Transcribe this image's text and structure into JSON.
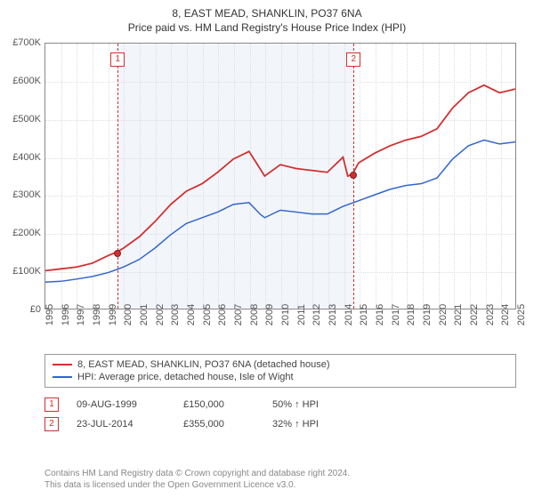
{
  "chart": {
    "type": "line",
    "title_main": "8, EAST MEAD, SHANKLIN, PO37 6NA",
    "title_sub": "Price paid vs. HM Land Registry's House Price Index (HPI)",
    "title_fontsize": 12,
    "label_fontsize": 11,
    "tick_fontsize": 11,
    "background_color": "#ffffff",
    "plot_border_color": "#888888",
    "grid_color": "#dddddd",
    "shade_color": "#f2f6fb",
    "x": {
      "min": 1995,
      "max": 2025,
      "ticks": [
        1995,
        1996,
        1997,
        1998,
        1999,
        2000,
        2001,
        2002,
        2003,
        2004,
        2005,
        2006,
        2007,
        2008,
        2009,
        2010,
        2011,
        2012,
        2013,
        2014,
        2015,
        2016,
        2017,
        2018,
        2019,
        2020,
        2021,
        2022,
        2023,
        2024,
        2025
      ],
      "tick_labels": [
        "1995",
        "1996",
        "1997",
        "1998",
        "1999",
        "2000",
        "2001",
        "2002",
        "2003",
        "2004",
        "2005",
        "2006",
        "2007",
        "2008",
        "2009",
        "2010",
        "2011",
        "2012",
        "2013",
        "2014",
        "2015",
        "2016",
        "2017",
        "2018",
        "2019",
        "2020",
        "2021",
        "2022",
        "2023",
        "2024",
        "2025"
      ]
    },
    "y": {
      "min": 0,
      "max": 700000,
      "ticks": [
        0,
        100000,
        200000,
        300000,
        400000,
        500000,
        600000,
        700000
      ],
      "tick_labels": [
        "£0",
        "£100K",
        "£200K",
        "£300K",
        "£400K",
        "£500K",
        "£600K",
        "£700K"
      ]
    },
    "series": [
      {
        "name": "price_paid",
        "label": "8, EAST MEAD, SHANKLIN, PO37 6NA (detached house)",
        "color": "#d32f2f",
        "line_width": 1.8,
        "points": [
          [
            1995,
            100000
          ],
          [
            1996,
            105000
          ],
          [
            1997,
            110000
          ],
          [
            1998,
            120000
          ],
          [
            1999,
            140000
          ],
          [
            1999.6,
            150000
          ],
          [
            2000,
            160000
          ],
          [
            2001,
            190000
          ],
          [
            2002,
            230000
          ],
          [
            2003,
            275000
          ],
          [
            2004,
            310000
          ],
          [
            2005,
            330000
          ],
          [
            2006,
            360000
          ],
          [
            2007,
            395000
          ],
          [
            2008,
            415000
          ],
          [
            2008.7,
            370000
          ],
          [
            2009,
            350000
          ],
          [
            2010,
            380000
          ],
          [
            2011,
            370000
          ],
          [
            2012,
            365000
          ],
          [
            2013,
            360000
          ],
          [
            2014,
            400000
          ],
          [
            2014.3,
            350000
          ],
          [
            2014.6,
            355000
          ],
          [
            2015,
            385000
          ],
          [
            2016,
            410000
          ],
          [
            2017,
            430000
          ],
          [
            2018,
            445000
          ],
          [
            2019,
            455000
          ],
          [
            2020,
            475000
          ],
          [
            2021,
            530000
          ],
          [
            2022,
            570000
          ],
          [
            2023,
            590000
          ],
          [
            2024,
            570000
          ],
          [
            2025,
            580000
          ]
        ]
      },
      {
        "name": "hpi",
        "label": "HPI: Average price, detached house, Isle of Wight",
        "color": "#3366cc",
        "line_width": 1.5,
        "points": [
          [
            1995,
            70000
          ],
          [
            1996,
            72000
          ],
          [
            1997,
            78000
          ],
          [
            1998,
            85000
          ],
          [
            1999,
            95000
          ],
          [
            2000,
            110000
          ],
          [
            2001,
            130000
          ],
          [
            2002,
            160000
          ],
          [
            2003,
            195000
          ],
          [
            2004,
            225000
          ],
          [
            2005,
            240000
          ],
          [
            2006,
            255000
          ],
          [
            2007,
            275000
          ],
          [
            2008,
            280000
          ],
          [
            2008.7,
            250000
          ],
          [
            2009,
            240000
          ],
          [
            2010,
            260000
          ],
          [
            2011,
            255000
          ],
          [
            2012,
            250000
          ],
          [
            2013,
            250000
          ],
          [
            2014,
            270000
          ],
          [
            2015,
            285000
          ],
          [
            2016,
            300000
          ],
          [
            2017,
            315000
          ],
          [
            2018,
            325000
          ],
          [
            2019,
            330000
          ],
          [
            2020,
            345000
          ],
          [
            2021,
            395000
          ],
          [
            2022,
            430000
          ],
          [
            2023,
            445000
          ],
          [
            2024,
            435000
          ],
          [
            2025,
            440000
          ]
        ]
      }
    ],
    "markers": [
      {
        "id": "1",
        "x": 1999.6,
        "y": 150000,
        "date": "09-AUG-1999",
        "price": "£150,000",
        "pct": "50% ↑ HPI"
      },
      {
        "id": "2",
        "x": 2014.6,
        "y": 355000,
        "date": "23-JUL-2014",
        "price": "£355,000",
        "pct": "32% ↑ HPI"
      }
    ],
    "shade_range": [
      1999.6,
      2014.6
    ]
  },
  "footer": {
    "line1": "Contains HM Land Registry data © Crown copyright and database right 2024.",
    "line2": "This data is licensed under the Open Government Licence v3.0."
  }
}
